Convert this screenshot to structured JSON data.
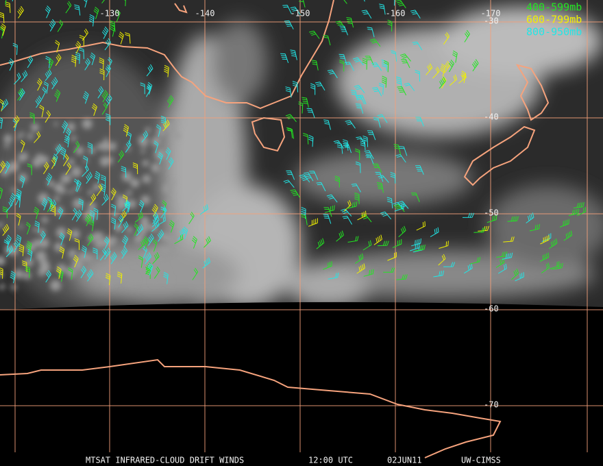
{
  "map": {
    "lon_lines": [
      -130,
      -140,
      -150,
      -160,
      -170
    ],
    "lat_lines": [
      -30,
      -40,
      -50,
      -60,
      -70
    ],
    "legend": [
      {
        "label": "400-599mb",
        "color": "#22e622"
      },
      {
        "label": "600-799mb",
        "color": "#f0f000"
      },
      {
        "label": "800-950mb",
        "color": "#22e6e6"
      }
    ],
    "footer": [
      "MTSAT INFRARED-CLOUD DRIFT WINDS",
      "12:00 UTC",
      "02JUN11",
      "UW-CIMSS"
    ]
  }
}
